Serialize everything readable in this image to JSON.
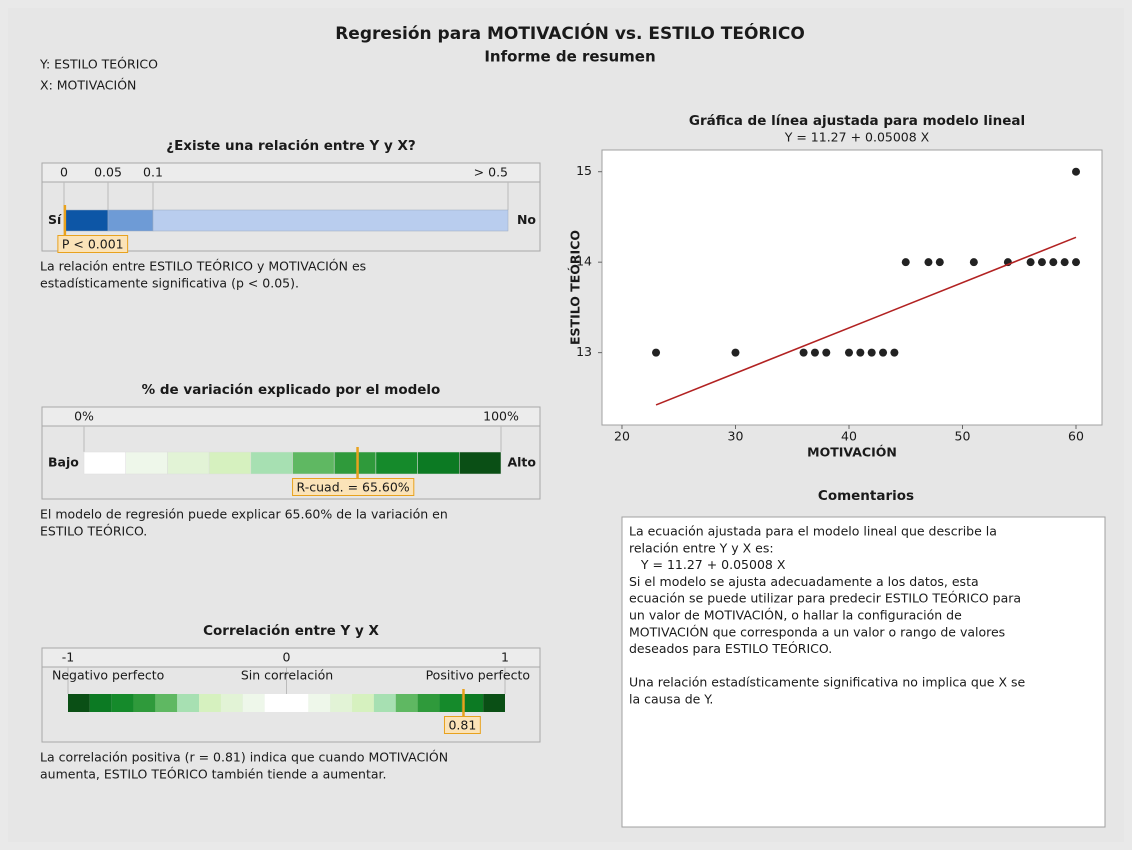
{
  "header": {
    "title": "Regresión para MOTIVACIÓN vs. ESTILO TEÓRICO",
    "subtitle": "Informe de resumen",
    "y_var": "Y: ESTILO TEÓRICO",
    "x_var": "X: MOTIVACIÓN"
  },
  "pvalue": {
    "title": "¿Existe una relación entre Y y X?",
    "ticks": [
      0,
      0.05,
      0.1,
      {
        "value": 0.5,
        "label": "> 0.5"
      }
    ],
    "colors": [
      "#0d56a6",
      "#6e9bd6",
      "#b9cdee"
    ],
    "left": "Sí",
    "right": "No",
    "value": 0.001,
    "value_label": "P < 0.001",
    "text": [
      "La relación entre ESTILO TEÓRICO y MOTIVACIÓN es",
      "estadísticamente significativa (p < 0.05)."
    ]
  },
  "rsq": {
    "title": "% de variación explicado por el modelo",
    "ticks": [
      {
        "value": 0,
        "label": "0%"
      },
      {
        "value": 100,
        "label": "100%"
      }
    ],
    "colors": [
      "#ffffff",
      "#eef7ea",
      "#e2f3d6",
      "#d6f1bf",
      "#a7e0b2",
      "#5fb862",
      "#2f9a3b",
      "#158a2b",
      "#0c7a23",
      "#0a4f15"
    ],
    "left": "Bajo",
    "right": "Alto",
    "value": 65.6,
    "value_label": "R-cuad. = 65.60%",
    "text": [
      "El modelo de regresión puede explicar 65.60% de la variación en",
      "ESTILO TEÓRICO."
    ]
  },
  "corr": {
    "title": "Correlación entre Y y X",
    "ticks": [
      -1,
      0,
      1
    ],
    "labels": [
      "Negativo perfecto",
      "Sin correlación",
      "Positivo perfecto"
    ],
    "colors": [
      "#0a4f15",
      "#0c7a23",
      "#158a2b",
      "#2f9a3b",
      "#5fb862",
      "#a7e0b2",
      "#d6f1bf",
      "#e2f3d6",
      "#eef7ea",
      "#ffffff",
      "#ffffff",
      "#eef7ea",
      "#e2f3d6",
      "#d6f1bf",
      "#a7e0b2",
      "#5fb862",
      "#2f9a3b",
      "#158a2b",
      "#0c7a23",
      "#0a4f15"
    ],
    "value": 0.81,
    "text": [
      "La correlación positiva (r = 0.81) indica que cuando MOTIVACIÓN",
      "aumenta, ESTILO TEÓRICO también tiende a aumentar."
    ]
  },
  "chart_data": {
    "type": "scatter",
    "title": "Gráfica de línea ajustada para modelo lineal",
    "subtitle": "Y = 11.27 + 0.05008 X",
    "x_label": "MOTIVACIÓN",
    "y_label": "ESTILO TEÓRICO",
    "x": [
      23,
      30,
      36,
      37,
      38,
      40,
      41,
      42,
      43,
      44,
      45,
      47,
      48,
      51,
      54,
      56,
      57,
      58,
      59,
      60,
      60
    ],
    "y": [
      13,
      13,
      13,
      13,
      13,
      13,
      13,
      13,
      13,
      13,
      14,
      14,
      14,
      14,
      14,
      14,
      14,
      14,
      14,
      14,
      15
    ],
    "color": "#222222",
    "fit": {
      "intercept": 11.27,
      "slope": 0.05008,
      "color": "#b22222"
    },
    "xlim": [
      18.24,
      62.29
    ],
    "ylim": [
      12.2,
      15.24
    ],
    "xticks": [
      20,
      30,
      40,
      50,
      60
    ],
    "yticks": [
      13,
      14,
      15
    ]
  },
  "comments": {
    "title": "Comentarios",
    "paragraphs": [
      [
        "La ecuación ajustada para el modelo lineal que describe la",
        "relación entre Y y X es:",
        "   Y = 11.27 + 0.05008 X",
        "Si el modelo se ajusta adecuadamente a los datos, esta",
        "ecuación se puede utilizar para predecir ESTILO TEÓRICO para",
        "un valor de MOTIVACIÓN, o hallar la configuración de",
        "MOTIVACIÓN que corresponda a un valor o rango de valores",
        "deseados para ESTILO TEÓRICO."
      ],
      [
        "Una relación estadísticamente significativa no implica que X se",
        "la causa de Y."
      ]
    ]
  }
}
